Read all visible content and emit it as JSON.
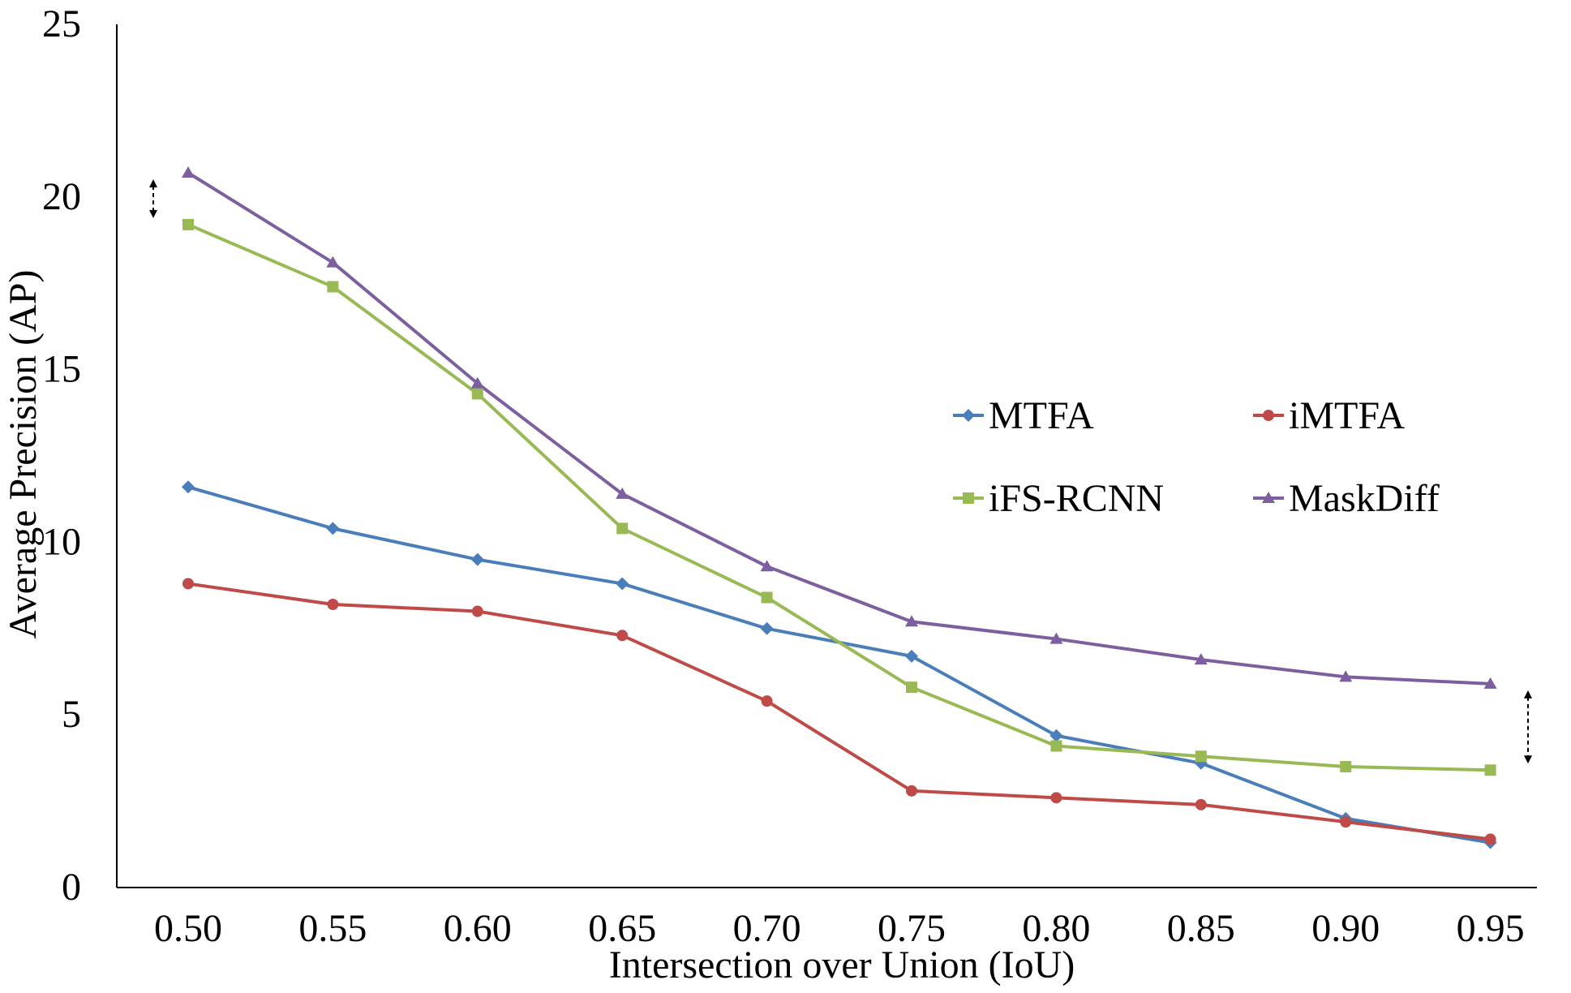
{
  "chart_data": {
    "type": "line",
    "title": "",
    "xlabel": "Intersection over Union (IoU)",
    "ylabel": "Average Precision (AP)",
    "categories": [
      "0.50",
      "0.55",
      "0.60",
      "0.65",
      "0.70",
      "0.75",
      "0.80",
      "0.85",
      "0.90",
      "0.95"
    ],
    "ylim": [
      0,
      25
    ],
    "yticks": [
      "0",
      "5",
      "10",
      "15",
      "20",
      "25"
    ],
    "legend_position": "center-right",
    "series": [
      {
        "name": "MTFA",
        "marker": "diamond",
        "color": "#4a7ebb",
        "values": [
          11.6,
          10.4,
          9.5,
          8.8,
          7.5,
          6.7,
          4.4,
          3.6,
          2.0,
          1.3
        ]
      },
      {
        "name": "iMTFA",
        "marker": "circle",
        "color": "#be4b48",
        "values": [
          8.8,
          8.2,
          8.0,
          7.3,
          5.4,
          2.8,
          2.6,
          2.4,
          1.9,
          1.4
        ]
      },
      {
        "name": "iFS-RCNN",
        "marker": "square",
        "color": "#98b954",
        "values": [
          19.2,
          17.4,
          14.3,
          10.4,
          8.4,
          5.8,
          4.1,
          3.8,
          3.5,
          3.4
        ]
      },
      {
        "name": "MaskDiff",
        "marker": "triangle",
        "color": "#7d5fa0",
        "values": [
          20.7,
          18.1,
          14.6,
          11.4,
          9.3,
          7.7,
          7.2,
          6.6,
          6.1,
          5.9
        ]
      }
    ],
    "annotations": [
      {
        "type": "double-arrow",
        "x": "0.50",
        "from": 19.2,
        "to": 20.7
      },
      {
        "type": "double-arrow",
        "x": "0.95",
        "from": 3.4,
        "to": 5.9
      }
    ]
  }
}
